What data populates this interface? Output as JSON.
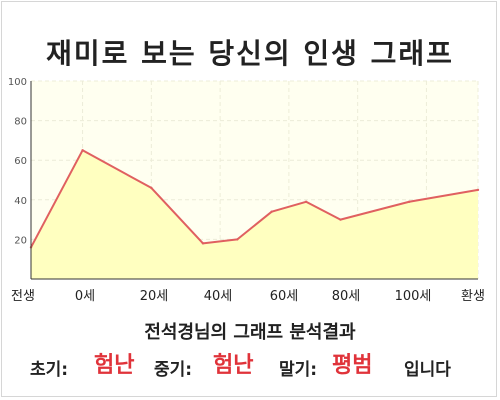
{
  "title": "재미로 보는 당신의 인생 그래프",
  "chart_data": {
    "type": "area",
    "x_labels": [
      "전생",
      "0세",
      "20세",
      "40세",
      "60세",
      "80세",
      "100세",
      "환생"
    ],
    "points": [
      {
        "x": -15,
        "y": 16
      },
      {
        "x": 0,
        "y": 65
      },
      {
        "x": 20,
        "y": 46
      },
      {
        "x": 35,
        "y": 18
      },
      {
        "x": 45,
        "y": 20
      },
      {
        "x": 55,
        "y": 34
      },
      {
        "x": 65,
        "y": 39
      },
      {
        "x": 75,
        "y": 30
      },
      {
        "x": 95,
        "y": 39
      },
      {
        "x": 115,
        "y": 45
      }
    ],
    "ylim": [
      0,
      100
    ],
    "yticks": [
      20,
      40,
      60,
      80,
      100
    ],
    "grid": true,
    "colors": {
      "line": "#e06060",
      "fill": "#ffffc0",
      "plot_background": "#fffff0",
      "grid": "#ececd8"
    }
  },
  "subtitle": "전석경님의 그래프 분석결과",
  "results": {
    "early_label": "초기:",
    "early_value": "험난",
    "mid_label": "중기:",
    "mid_value": "험난",
    "late_label": "말기:",
    "late_value": "평범",
    "suffix": "입니다"
  }
}
